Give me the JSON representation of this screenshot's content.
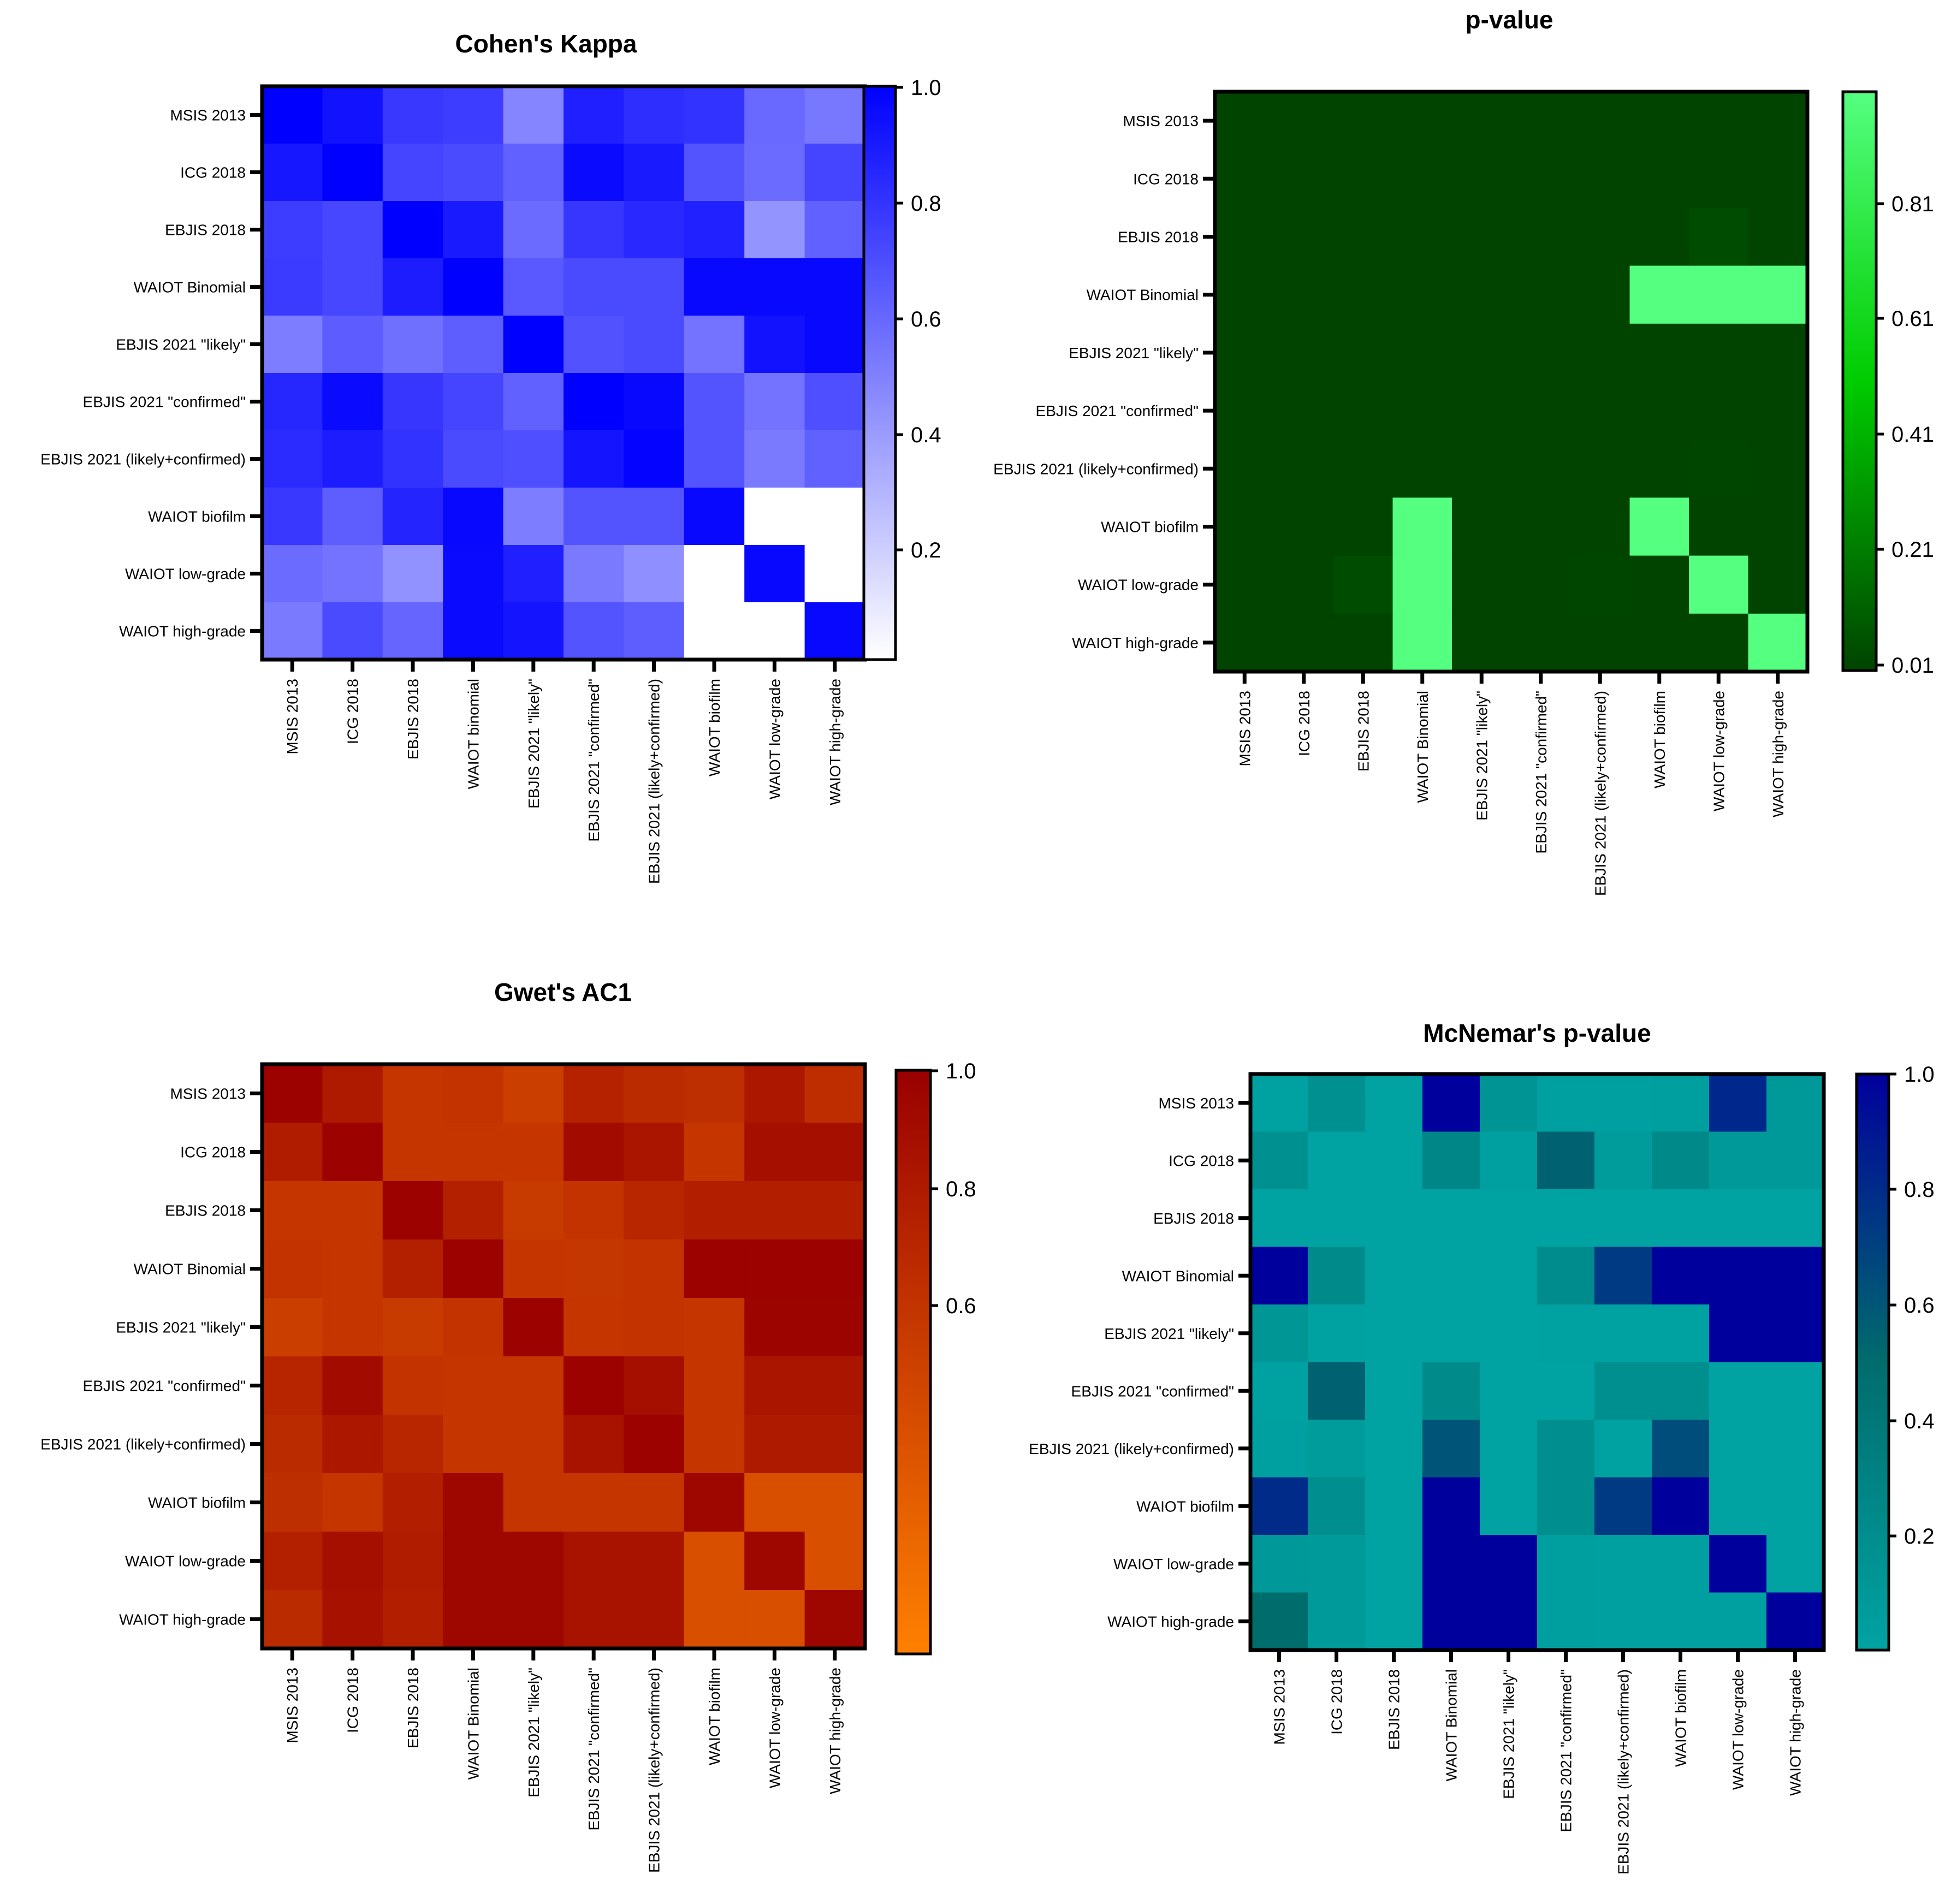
{
  "chart_data": [
    {
      "type": "heatmap",
      "title": "Cohen's Kappa",
      "rows": [
        "MSIS 2013",
        "ICG 2018",
        "EBJIS 2018",
        "WAIOT Binomial",
        "EBJIS 2021 \"likely\"",
        "EBJIS 2021 \"confirmed\"",
        "EBJIS 2021 (likely+confirmed)",
        "WAIOT biofilm",
        "WAIOT low-grade",
        "WAIOT high-grade"
      ],
      "columns": [
        "MSIS 2013",
        "ICG 2018",
        "EBJIS 2018",
        "WAIOT binomial",
        "EBJIS 2021 \"likely\"",
        "EBJIS 2021 \"confirmed\"",
        "EBJIS 2021 (likely+confirmed)",
        "WAIOT biofilm",
        "WAIOT low-grade",
        "WAIOT high-grade"
      ],
      "values": [
        [
          1.0,
          0.93,
          0.78,
          0.76,
          0.48,
          0.88,
          0.82,
          0.8,
          0.59,
          0.53
        ],
        [
          0.91,
          1.0,
          0.73,
          0.71,
          0.62,
          0.96,
          0.9,
          0.67,
          0.58,
          0.73
        ],
        [
          0.76,
          0.72,
          1.0,
          0.9,
          0.58,
          0.79,
          0.84,
          0.87,
          0.42,
          0.62
        ],
        [
          0.77,
          0.72,
          0.89,
          1.0,
          0.65,
          0.71,
          0.71,
          0.97,
          0.97,
          0.97
        ],
        [
          0.51,
          0.64,
          0.56,
          0.63,
          1.0,
          0.68,
          0.71,
          0.55,
          0.93,
          0.97
        ],
        [
          0.85,
          0.96,
          0.79,
          0.73,
          0.62,
          1.0,
          0.97,
          0.67,
          0.55,
          0.69
        ],
        [
          0.83,
          0.89,
          0.8,
          0.71,
          0.69,
          0.92,
          0.99,
          0.67,
          0.52,
          0.62
        ],
        [
          0.78,
          0.63,
          0.86,
          0.97,
          0.51,
          0.67,
          0.67,
          0.97,
          null,
          null
        ],
        [
          0.58,
          0.55,
          0.43,
          0.96,
          0.88,
          0.52,
          0.44,
          null,
          0.97,
          null
        ],
        [
          0.52,
          0.71,
          0.6,
          0.96,
          0.92,
          0.67,
          0.63,
          null,
          null,
          0.97
        ]
      ],
      "scale": {
        "min": 0,
        "max": 1,
        "low_color": "#ffffff",
        "high_color": "#0000ff",
        "ticks": [
          "1.0",
          "0.8",
          "0.6",
          "0.4",
          "0.2"
        ]
      }
    },
    {
      "type": "heatmap",
      "title": "p-value",
      "rows": [
        "MSIS 2013",
        "ICG 2018",
        "EBJIS 2018",
        "WAIOT Binomial",
        "EBJIS 2021 \"likely\"",
        "EBJIS 2021 \"confirmed\"",
        "EBJIS 2021 (likely+confirmed)",
        "WAIOT biofilm",
        "WAIOT low-grade",
        "WAIOT high-grade"
      ],
      "columns": [
        "MSIS 2013",
        "ICG 2018",
        "EBJIS 2018",
        "WAIOT Binomial",
        "EBJIS 2021 \"likely\"",
        "EBJIS 2021 \"confirmed\"",
        "EBJIS 2021 (likely+confirmed)",
        "WAIOT biofilm",
        "WAIOT low-grade",
        "WAIOT high-grade"
      ],
      "values": [
        [
          0.001,
          0.001,
          0.001,
          0.001,
          0.001,
          0.001,
          0.001,
          0.001,
          0.001,
          0.001
        ],
        [
          0.001,
          0.001,
          0.001,
          0.001,
          0.001,
          0.001,
          0.001,
          0.001,
          0.001,
          0.001
        ],
        [
          0.001,
          0.001,
          0.001,
          0.001,
          0.001,
          0.001,
          0.001,
          0.001,
          0.03,
          0.001
        ],
        [
          0.001,
          0.001,
          0.001,
          0.001,
          0.001,
          0.001,
          0.001,
          1.0,
          1.0,
          1.0
        ],
        [
          0.001,
          0.001,
          0.001,
          0.001,
          0.001,
          0.001,
          0.001,
          0.001,
          0.001,
          0.001
        ],
        [
          0.001,
          0.001,
          0.001,
          0.001,
          0.001,
          0.001,
          0.001,
          0.001,
          0.001,
          0.001
        ],
        [
          0.001,
          0.001,
          0.001,
          0.001,
          0.001,
          0.001,
          0.001,
          0.001,
          0.01,
          0.001
        ],
        [
          0.001,
          0.001,
          0.001,
          1.0,
          0.001,
          0.001,
          0.001,
          1.0,
          0.001,
          0.001
        ],
        [
          0.001,
          0.001,
          0.03,
          1.0,
          0.001,
          0.001,
          0.01,
          0.001,
          1.0,
          0.001
        ],
        [
          0.001,
          0.001,
          0.001,
          1.0,
          0.001,
          0.001,
          0.001,
          0.001,
          0.001,
          1.0
        ]
      ],
      "scale": {
        "min": 0.001,
        "max": 1,
        "low_color": "#004400",
        "mid_color": "#00cc00",
        "high_color": "#55ff80",
        "ticks": [
          "0.81",
          "0.61",
          "0.41",
          "0.21",
          "0.01"
        ]
      }
    },
    {
      "type": "heatmap",
      "title": "Gwet's AC1",
      "rows": [
        "MSIS 2013",
        "ICG 2018",
        "EBJIS 2018",
        "WAIOT Binomial",
        "EBJIS 2021 \"likely\"",
        "EBJIS 2021 \"confirmed\"",
        "EBJIS 2021 (likely+confirmed)",
        "WAIOT biofilm",
        "WAIOT low-grade",
        "WAIOT high-grade"
      ],
      "columns": [
        "MSIS 2013",
        "ICG 2018",
        "EBJIS 2018",
        "WAIOT Binomial",
        "EBJIS 2021 \"likely\"",
        "EBJIS 2021 \"confirmed\"",
        "EBJIS 2021 (likely+confirmed)",
        "WAIOT biofilm",
        "WAIOT low-grade",
        "WAIOT high-grade"
      ],
      "values": [
        [
          0.99,
          0.88,
          0.75,
          0.76,
          0.71,
          0.84,
          0.8,
          0.78,
          0.89,
          0.79
        ],
        [
          0.87,
          0.99,
          0.75,
          0.75,
          0.75,
          0.95,
          0.9,
          0.75,
          0.93,
          0.93
        ],
        [
          0.75,
          0.75,
          0.99,
          0.85,
          0.73,
          0.76,
          0.82,
          0.86,
          0.86,
          0.86
        ],
        [
          0.76,
          0.75,
          0.85,
          0.99,
          0.75,
          0.74,
          0.76,
          0.99,
          0.99,
          0.99
        ],
        [
          0.71,
          0.75,
          0.73,
          0.76,
          0.99,
          0.75,
          0.76,
          0.75,
          0.98,
          0.98
        ],
        [
          0.83,
          0.95,
          0.76,
          0.75,
          0.75,
          0.99,
          0.93,
          0.75,
          0.9,
          0.9
        ],
        [
          0.8,
          0.89,
          0.82,
          0.75,
          0.75,
          0.91,
          0.99,
          0.75,
          0.88,
          0.88
        ],
        [
          0.78,
          0.75,
          0.86,
          0.97,
          0.75,
          0.75,
          0.75,
          0.97,
          0.63,
          0.63
        ],
        [
          0.85,
          0.93,
          0.87,
          0.97,
          0.97,
          0.91,
          0.91,
          0.63,
          0.97,
          0.63
        ],
        [
          0.8,
          0.92,
          0.86,
          0.97,
          0.97,
          0.91,
          0.91,
          0.63,
          0.63,
          0.97
        ]
      ],
      "scale": {
        "min": 0.4,
        "max": 1,
        "low_color": "#ff8000",
        "high_color": "#990000",
        "ticks": [
          "1.0",
          "0.8",
          "0.6"
        ]
      }
    },
    {
      "type": "heatmap",
      "title": "McNemar's p-value",
      "rows": [
        "MSIS 2013",
        "ICG 2018",
        "EBJIS 2018",
        "WAIOT Binomial",
        "EBJIS 2021 \"likely\"",
        "EBJIS 2021 \"confirmed\"",
        "EBJIS 2021 (likely+confirmed)",
        "WAIOT biofilm",
        "WAIOT low-grade",
        "WAIOT high-grade"
      ],
      "columns": [
        "MSIS 2013",
        "ICG 2018",
        "EBJIS 2018",
        "WAIOT Binomial",
        "EBJIS 2021 \"likely\"",
        "EBJIS 2021 \"confirmed\"",
        "EBJIS 2021 (likely+confirmed)",
        "WAIOT biofilm",
        "WAIOT low-grade",
        "WAIOT high-grade"
      ],
      "values": [
        [
          0.02,
          0.17,
          0.01,
          1.0,
          0.14,
          0.03,
          0.03,
          0.04,
          0.82,
          0.09
        ],
        [
          0.17,
          0.01,
          0.01,
          0.26,
          0.03,
          0.55,
          0.06,
          0.24,
          0.09,
          0.09
        ],
        [
          0.01,
          0.01,
          0.01,
          0.01,
          0.01,
          0.01,
          0.01,
          0.01,
          0.01,
          0.01
        ],
        [
          1.0,
          0.22,
          0.01,
          0.01,
          0.01,
          0.21,
          0.73,
          1.0,
          1.0,
          1.0
        ],
        [
          0.12,
          0.02,
          0.01,
          0.01,
          0.01,
          0.02,
          0.02,
          0.02,
          1.0,
          1.0
        ],
        [
          0.02,
          0.55,
          0.01,
          0.22,
          0.01,
          0.01,
          0.18,
          0.18,
          0.01,
          0.01
        ],
        [
          0.03,
          0.07,
          0.01,
          0.61,
          0.01,
          0.19,
          0.02,
          0.65,
          0.01,
          0.01
        ],
        [
          0.8,
          0.19,
          0.01,
          1.0,
          0.01,
          0.19,
          0.73,
          1.0,
          0.01,
          0.01
        ],
        [
          0.1,
          0.08,
          0.01,
          1.0,
          1.0,
          0.04,
          0.03,
          0.03,
          1.0,
          0.01
        ],
        [
          0.49,
          0.08,
          0.01,
          1.0,
          1.0,
          0.04,
          0.03,
          0.03,
          0.03,
          1.0
        ]
      ],
      "scale": {
        "min": 0,
        "max": 1,
        "low_color": "#00a3a3",
        "mid_color": "#006c6c",
        "high_color": "#00009c",
        "ticks": [
          "1.0",
          "0.8",
          "0.6",
          "0.4",
          "0.2"
        ]
      }
    }
  ]
}
